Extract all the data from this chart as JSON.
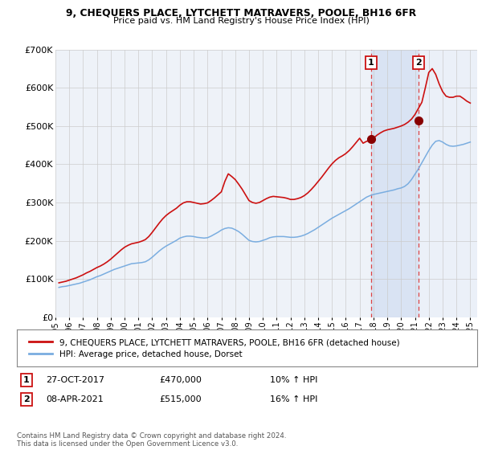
{
  "title1": "9, CHEQUERS PLACE, LYTCHETT MATRAVERS, POOLE, BH16 6FR",
  "title2": "Price paid vs. HM Land Registry's House Price Index (HPI)",
  "bg_color": "#ffffff",
  "plot_bg_color": "#eef2f8",
  "grid_color": "#cccccc",
  "red_line_label": "9, CHEQUERS PLACE, LYTCHETT MATRAVERS, POOLE, BH16 6FR (detached house)",
  "blue_line_label": "HPI: Average price, detached house, Dorset",
  "annotation1": {
    "label": "1",
    "date": "27-OCT-2017",
    "price": "£470,000",
    "pct": "10% ↑ HPI",
    "x_year": 2017.82
  },
  "annotation2": {
    "label": "2",
    "date": "08-APR-2021",
    "price": "£515,000",
    "pct": "16% ↑ HPI",
    "x_year": 2021.27
  },
  "ann1_y": 465000,
  "ann2_y": 515000,
  "footer": "Contains HM Land Registry data © Crown copyright and database right 2024.\nThis data is licensed under the Open Government Licence v3.0.",
  "ylim": [
    0,
    700000
  ],
  "xlim_start": 1995.0,
  "xlim_end": 2025.5,
  "yticks": [
    0,
    100000,
    200000,
    300000,
    400000,
    500000,
    600000,
    700000
  ],
  "ytick_labels": [
    "£0",
    "£100K",
    "£200K",
    "£300K",
    "£400K",
    "£500K",
    "£600K",
    "£700K"
  ],
  "xticks": [
    1995,
    1996,
    1997,
    1998,
    1999,
    2000,
    2001,
    2002,
    2003,
    2004,
    2005,
    2006,
    2007,
    2008,
    2009,
    2010,
    2011,
    2012,
    2013,
    2014,
    2015,
    2016,
    2017,
    2018,
    2019,
    2020,
    2021,
    2022,
    2023,
    2024,
    2025
  ],
  "hpi_x": [
    1995.25,
    1995.5,
    1995.75,
    1996.0,
    1996.25,
    1996.5,
    1996.75,
    1997.0,
    1997.25,
    1997.5,
    1997.75,
    1998.0,
    1998.25,
    1998.5,
    1998.75,
    1999.0,
    1999.25,
    1999.5,
    1999.75,
    2000.0,
    2000.25,
    2000.5,
    2000.75,
    2001.0,
    2001.25,
    2001.5,
    2001.75,
    2002.0,
    2002.25,
    2002.5,
    2002.75,
    2003.0,
    2003.25,
    2003.5,
    2003.75,
    2004.0,
    2004.25,
    2004.5,
    2004.75,
    2005.0,
    2005.25,
    2005.5,
    2005.75,
    2006.0,
    2006.25,
    2006.5,
    2006.75,
    2007.0,
    2007.25,
    2007.5,
    2007.75,
    2008.0,
    2008.25,
    2008.5,
    2008.75,
    2009.0,
    2009.25,
    2009.5,
    2009.75,
    2010.0,
    2010.25,
    2010.5,
    2010.75,
    2011.0,
    2011.25,
    2011.5,
    2011.75,
    2012.0,
    2012.25,
    2012.5,
    2012.75,
    2013.0,
    2013.25,
    2013.5,
    2013.75,
    2014.0,
    2014.25,
    2014.5,
    2014.75,
    2015.0,
    2015.25,
    2015.5,
    2015.75,
    2016.0,
    2016.25,
    2016.5,
    2016.75,
    2017.0,
    2017.25,
    2017.5,
    2017.75,
    2018.0,
    2018.25,
    2018.5,
    2018.75,
    2019.0,
    2019.25,
    2019.5,
    2019.75,
    2020.0,
    2020.25,
    2020.5,
    2020.75,
    2021.0,
    2021.25,
    2021.5,
    2021.75,
    2022.0,
    2022.25,
    2022.5,
    2022.75,
    2023.0,
    2023.25,
    2023.5,
    2023.75,
    2024.0,
    2024.25,
    2024.5,
    2024.75,
    2025.0
  ],
  "hpi_y": [
    78000,
    80000,
    81000,
    83000,
    85000,
    87000,
    89000,
    92000,
    95000,
    98000,
    102000,
    106000,
    109000,
    113000,
    117000,
    121000,
    125000,
    128000,
    131000,
    134000,
    137000,
    140000,
    141000,
    142000,
    143000,
    145000,
    150000,
    157000,
    165000,
    173000,
    180000,
    186000,
    191000,
    196000,
    201000,
    207000,
    210000,
    212000,
    212000,
    211000,
    209000,
    208000,
    207000,
    208000,
    212000,
    217000,
    222000,
    228000,
    232000,
    234000,
    233000,
    229000,
    224000,
    217000,
    209000,
    201000,
    198000,
    197000,
    198000,
    201000,
    204000,
    208000,
    210000,
    211000,
    211000,
    211000,
    210000,
    209000,
    209000,
    210000,
    212000,
    215000,
    219000,
    224000,
    229000,
    235000,
    241000,
    247000,
    253000,
    259000,
    264000,
    269000,
    274000,
    279000,
    284000,
    290000,
    296000,
    302000,
    308000,
    314000,
    318000,
    321000,
    323000,
    325000,
    327000,
    329000,
    331000,
    333000,
    336000,
    338000,
    342000,
    349000,
    360000,
    374000,
    388000,
    404000,
    420000,
    436000,
    450000,
    460000,
    462000,
    458000,
    452000,
    448000,
    447000,
    448000,
    450000,
    452000,
    455000,
    458000
  ],
  "red_x": [
    1995.25,
    1995.5,
    1995.75,
    1996.0,
    1996.25,
    1996.5,
    1996.75,
    1997.0,
    1997.25,
    1997.5,
    1997.75,
    1998.0,
    1998.25,
    1998.5,
    1998.75,
    1999.0,
    1999.25,
    1999.5,
    1999.75,
    2000.0,
    2000.25,
    2000.5,
    2000.75,
    2001.0,
    2001.25,
    2001.5,
    2001.75,
    2002.0,
    2002.25,
    2002.5,
    2002.75,
    2003.0,
    2003.25,
    2003.5,
    2003.75,
    2004.0,
    2004.25,
    2004.5,
    2004.75,
    2005.0,
    2005.25,
    2005.5,
    2005.75,
    2006.0,
    2006.25,
    2006.5,
    2006.75,
    2007.0,
    2007.25,
    2007.5,
    2007.75,
    2008.0,
    2008.25,
    2008.5,
    2008.75,
    2009.0,
    2009.25,
    2009.5,
    2009.75,
    2010.0,
    2010.25,
    2010.5,
    2010.75,
    2011.0,
    2011.25,
    2011.5,
    2011.75,
    2012.0,
    2012.25,
    2012.5,
    2012.75,
    2013.0,
    2013.25,
    2013.5,
    2013.75,
    2014.0,
    2014.25,
    2014.5,
    2014.75,
    2015.0,
    2015.25,
    2015.5,
    2015.75,
    2016.0,
    2016.25,
    2016.5,
    2016.75,
    2017.0,
    2017.25,
    2017.5,
    2017.75,
    2018.0,
    2018.25,
    2018.5,
    2018.75,
    2019.0,
    2019.25,
    2019.5,
    2019.75,
    2020.0,
    2020.25,
    2020.5,
    2020.75,
    2021.0,
    2021.25,
    2021.5,
    2021.75,
    2022.0,
    2022.25,
    2022.5,
    2022.75,
    2023.0,
    2023.25,
    2023.5,
    2023.75,
    2024.0,
    2024.25,
    2024.5,
    2024.75,
    2025.0
  ],
  "red_y": [
    90000,
    92000,
    94000,
    97000,
    100000,
    103000,
    107000,
    111000,
    116000,
    120000,
    125000,
    130000,
    134000,
    139000,
    145000,
    152000,
    160000,
    168000,
    176000,
    183000,
    188000,
    192000,
    194000,
    196000,
    199000,
    203000,
    211000,
    222000,
    234000,
    246000,
    257000,
    266000,
    273000,
    279000,
    285000,
    293000,
    299000,
    302000,
    302000,
    300000,
    298000,
    296000,
    297000,
    299000,
    305000,
    312000,
    320000,
    328000,
    355000,
    375000,
    368000,
    360000,
    348000,
    335000,
    320000,
    305000,
    300000,
    298000,
    300000,
    305000,
    310000,
    314000,
    316000,
    315000,
    314000,
    313000,
    311000,
    308000,
    308000,
    310000,
    313000,
    318000,
    325000,
    334000,
    344000,
    355000,
    366000,
    378000,
    390000,
    401000,
    410000,
    417000,
    422000,
    428000,
    436000,
    446000,
    457000,
    468000,
    455000,
    460000,
    462000,
    468000,
    476000,
    482000,
    487000,
    490000,
    492000,
    494000,
    497000,
    500000,
    504000,
    510000,
    518000,
    530000,
    546000,
    562000,
    600000,
    640000,
    650000,
    635000,
    610000,
    590000,
    578000,
    575000,
    575000,
    578000,
    578000,
    572000,
    565000,
    560000
  ]
}
